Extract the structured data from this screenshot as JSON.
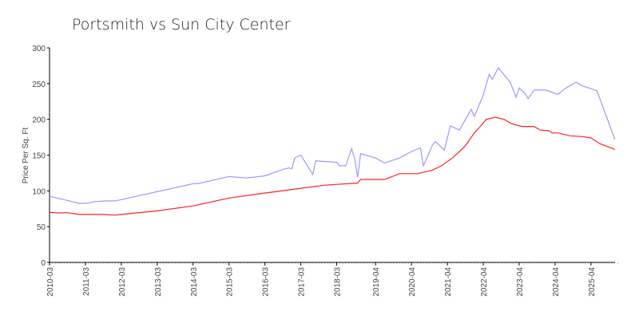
{
  "chart_data": {
    "type": "line",
    "title": "Portsmith vs Sun City Center",
    "xlabel": "",
    "ylabel": "Price Per Sq. Ft",
    "ylim": [
      0,
      300
    ],
    "yticks": [
      0,
      50,
      100,
      150,
      200,
      250,
      300
    ],
    "xlim": [
      "2010-03",
      "2025-12"
    ],
    "xticks": [
      "2010-03",
      "2011-03",
      "2012-03",
      "2013-03",
      "2014-03",
      "2015-03",
      "2016-03",
      "2017-03",
      "2018-03",
      "2019-04",
      "2020-04",
      "2021-04",
      "2022-04",
      "2023-04",
      "2024-04",
      "2025-04"
    ],
    "grid": false,
    "legend": "none",
    "series": [
      {
        "color": "#9999ff",
        "points": [
          [
            "2010-03",
            92.5
          ],
          [
            "2011-01",
            82.5
          ],
          [
            "2011-04",
            83
          ],
          [
            "2011-06",
            85
          ],
          [
            "2011-10",
            86
          ],
          [
            "2012-01",
            86
          ],
          [
            "2014-03",
            110
          ],
          [
            "2014-05",
            110.5
          ],
          [
            "2015-03",
            120
          ],
          [
            "2015-09",
            118
          ],
          [
            "2016-03",
            121
          ],
          [
            "2016-09",
            130
          ],
          [
            "2016-11",
            132
          ],
          [
            "2016-12",
            131
          ],
          [
            "2017-01",
            146
          ],
          [
            "2017-03",
            150
          ],
          [
            "2017-07",
            123
          ],
          [
            "2017-08",
            142
          ],
          [
            "2017-11",
            141
          ],
          [
            "2018-03",
            140
          ],
          [
            "2018-04",
            135
          ],
          [
            "2018-06",
            135
          ],
          [
            "2018-08",
            159
          ],
          [
            "2018-09",
            145
          ],
          [
            "2018-10",
            119
          ],
          [
            "2018-11",
            152
          ],
          [
            "2019-04",
            146
          ],
          [
            "2019-07",
            139
          ],
          [
            "2019-12",
            146
          ],
          [
            "2020-04",
            155
          ],
          [
            "2020-07",
            160
          ],
          [
            "2020-08",
            135
          ],
          [
            "2020-11",
            164
          ],
          [
            "2020-12",
            169
          ],
          [
            "2021-03",
            157
          ],
          [
            "2021-05",
            191
          ],
          [
            "2021-08",
            185
          ],
          [
            "2021-12",
            214
          ],
          [
            "2022-01",
            204
          ],
          [
            "2022-04",
            234
          ],
          [
            "2022-06",
            263
          ],
          [
            "2022-07",
            256
          ],
          [
            "2022-09",
            272
          ],
          [
            "2023-01",
            252
          ],
          [
            "2023-03",
            231
          ],
          [
            "2023-04",
            244
          ],
          [
            "2023-06",
            236
          ],
          [
            "2023-07",
            229
          ],
          [
            "2023-09",
            241
          ],
          [
            "2024-01",
            241
          ],
          [
            "2024-05",
            235
          ],
          [
            "2024-07",
            242
          ],
          [
            "2024-11",
            252
          ],
          [
            "2025-01",
            247
          ],
          [
            "2025-06",
            240
          ],
          [
            "2025-12",
            172
          ]
        ]
      },
      {
        "color": "#ff2222",
        "points": [
          [
            "2010-03",
            70
          ],
          [
            "2010-06",
            69
          ],
          [
            "2010-09",
            69.5
          ],
          [
            "2011-01",
            67
          ],
          [
            "2011-09",
            67
          ],
          [
            "2012-01",
            66
          ],
          [
            "2012-03",
            67
          ],
          [
            "2013-03",
            72
          ],
          [
            "2014-03",
            79
          ],
          [
            "2015-03",
            90
          ],
          [
            "2016-03",
            97
          ],
          [
            "2016-05",
            98
          ],
          [
            "2017-02",
            103
          ],
          [
            "2017-11",
            108
          ],
          [
            "2018-10",
            111
          ],
          [
            "2018-11",
            116
          ],
          [
            "2019-07",
            116
          ],
          [
            "2019-12",
            124
          ],
          [
            "2020-06",
            124
          ],
          [
            "2020-11",
            129
          ],
          [
            "2021-02",
            135
          ],
          [
            "2021-06",
            147
          ],
          [
            "2021-10",
            163
          ],
          [
            "2022-01",
            181
          ],
          [
            "2022-03",
            190
          ],
          [
            "2022-05",
            200
          ],
          [
            "2022-08",
            203
          ],
          [
            "2022-11",
            200
          ],
          [
            "2023-01",
            195
          ],
          [
            "2023-03",
            192
          ],
          [
            "2023-05",
            190
          ],
          [
            "2023-09",
            190
          ],
          [
            "2023-11",
            185
          ],
          [
            "2024-02",
            184
          ],
          [
            "2024-03",
            181
          ],
          [
            "2024-05",
            181
          ],
          [
            "2024-09",
            177
          ],
          [
            "2025-01",
            176
          ],
          [
            "2025-04",
            174
          ],
          [
            "2025-07",
            166
          ],
          [
            "2025-12",
            158
          ]
        ]
      }
    ]
  }
}
